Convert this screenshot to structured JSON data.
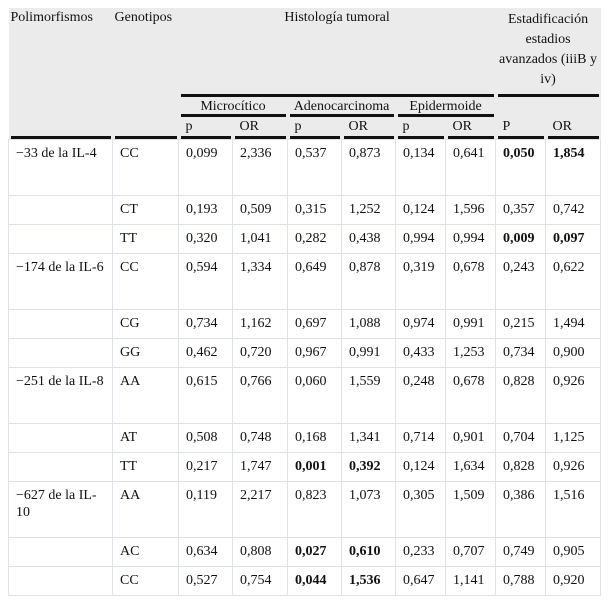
{
  "header": {
    "col_polimorfismos": "Polimorfismos",
    "col_genotipos": "Genotipos",
    "group_histologia": "Histología tumoral",
    "group_estadificacion": "Estadificación estadios avanzados (iiiB y iv)",
    "subgroup_microcitico": "Microcítico",
    "subgroup_adenocarcinoma": "Adenocarcinoma",
    "subgroup_epidermoide": "Epidermoide",
    "stat_cols": [
      "p",
      "OR",
      "p",
      "OR",
      "p",
      "OR",
      "P",
      "OR"
    ]
  },
  "body": {
    "rows": [
      {
        "polimorfismo": "−33 de la IL-4",
        "genotipo": "CC",
        "values": [
          "0,099",
          "2,336",
          "0,537",
          "0,873",
          "0,134",
          "0,641",
          "0,050",
          "1,854"
        ],
        "bold": [
          6,
          7
        ]
      },
      {
        "polimorfismo": "",
        "genotipo": "CT",
        "values": [
          "0,193",
          "0,509",
          "0,315",
          "1,252",
          "0,124",
          "1,596",
          "0,357",
          "0,742"
        ],
        "bold": []
      },
      {
        "polimorfismo": "",
        "genotipo": "TT",
        "values": [
          "0,320",
          "1,041",
          "0,282",
          "0,438",
          "0,994",
          "0,994",
          "0,009",
          "0,097"
        ],
        "bold": [
          6,
          7
        ]
      },
      {
        "polimorfismo": "−174 de la IL-6",
        "genotipo": "CC",
        "values": [
          "0,594",
          "1,334",
          "0,649",
          "0,878",
          "0,319",
          "0,678",
          "0,243",
          "0,622"
        ],
        "bold": []
      },
      {
        "polimorfismo": "",
        "genotipo": "CG",
        "values": [
          "0,734",
          "1,162",
          "0,697",
          "1,088",
          "0,974",
          "0,991",
          "0,215",
          "1,494"
        ],
        "bold": []
      },
      {
        "polimorfismo": "",
        "genotipo": "GG",
        "values": [
          "0,462",
          "0,720",
          "0,967",
          "0,991",
          "0,433",
          "1,253",
          "0,734",
          "0,900"
        ],
        "bold": []
      },
      {
        "polimorfismo": "−251 de la IL-8",
        "genotipo": "AA",
        "values": [
          "0,615",
          "0,766",
          "0,060",
          "1,559",
          "0,248",
          "0,678",
          "0,828",
          "0,926"
        ],
        "bold": []
      },
      {
        "polimorfismo": "",
        "genotipo": "AT",
        "values": [
          "0,508",
          "0,748",
          "0,168",
          "1,341",
          "0,714",
          "0,901",
          "0,704",
          "1,125"
        ],
        "bold": []
      },
      {
        "polimorfismo": "",
        "genotipo": "TT",
        "values": [
          "0,217",
          "1,747",
          "0,001",
          "0,392",
          "0,124",
          "1,634",
          "0,828",
          "0,926"
        ],
        "bold": [
          2,
          3
        ]
      },
      {
        "polimorfismo": "−627 de la IL-10",
        "genotipo": "AA",
        "values": [
          "0,119",
          "2,217",
          "0,823",
          "1,073",
          "0,305",
          "1,509",
          "0,386",
          "1,516"
        ],
        "bold": []
      },
      {
        "polimorfismo": "",
        "genotipo": "AC",
        "values": [
          "0,634",
          "0,808",
          "0,027",
          "0,610",
          "0,233",
          "0,707",
          "0,749",
          "0,905"
        ],
        "bold": [
          2,
          3
        ]
      },
      {
        "polimorfismo": "",
        "genotipo": "CC",
        "values": [
          "0,527",
          "0,754",
          "0,044",
          "1,536",
          "0,647",
          "1,141",
          "0,788",
          "0,920"
        ],
        "bold": [
          2,
          3
        ]
      }
    ]
  },
  "colors": {
    "header_bg": "#ebebeb",
    "grid_line": "#dfe3e8",
    "rule": "#111111"
  }
}
